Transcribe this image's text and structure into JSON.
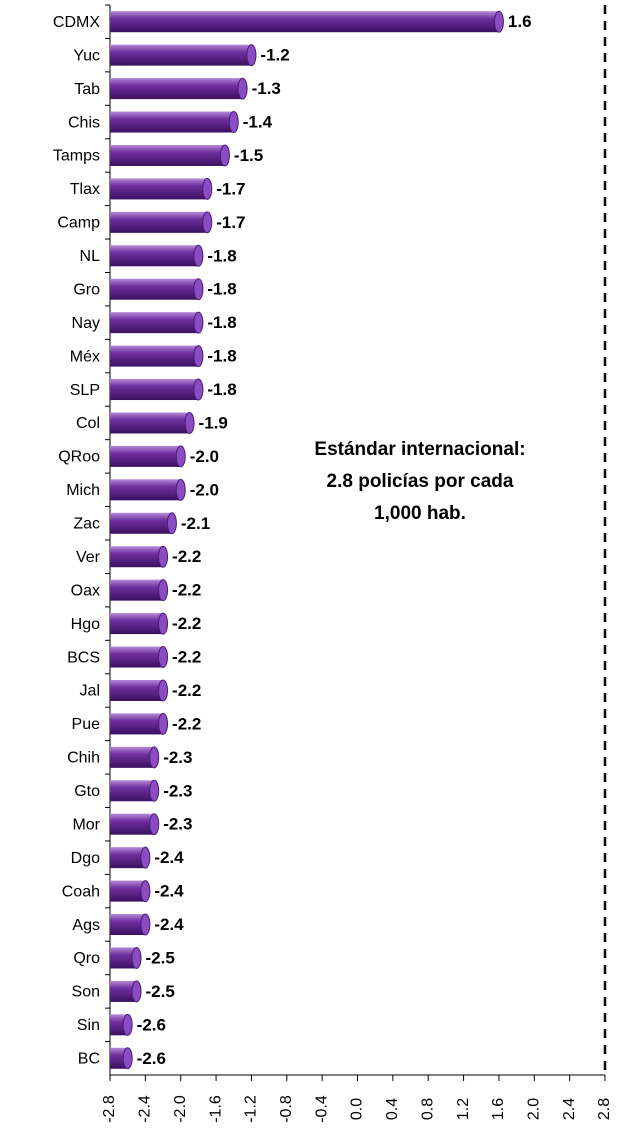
{
  "chart_data": {
    "type": "bar",
    "orientation": "horizontal",
    "color": "#7030a0",
    "categories": [
      "CDMX",
      "Yuc",
      "Tab",
      "Chis",
      "Tamps",
      "Tlax",
      "Camp",
      "NL",
      "Gro",
      "Nay",
      "Méx",
      "SLP",
      "Col",
      "QRoo",
      "Mich",
      "Zac",
      "Ver",
      "Oax",
      "Hgo",
      "BCS",
      "Jal",
      "Pue",
      "Chih",
      "Gto",
      "Mor",
      "Dgo",
      "Coah",
      "Ags",
      "Qro",
      "Son",
      "Sin",
      "BC"
    ],
    "values": [
      1.6,
      -1.2,
      -1.3,
      -1.4,
      -1.5,
      -1.7,
      -1.7,
      -1.8,
      -1.8,
      -1.8,
      -1.8,
      -1.8,
      -1.9,
      -2.0,
      -2.0,
      -2.1,
      -2.2,
      -2.2,
      -2.2,
      -2.2,
      -2.2,
      -2.2,
      -2.3,
      -2.3,
      -2.3,
      -2.4,
      -2.4,
      -2.4,
      -2.5,
      -2.5,
      -2.6,
      -2.6
    ],
    "value_labels": [
      "1.6",
      "-1.2",
      "-1.3",
      "-1.4",
      "-1.5",
      "-1.7",
      "-1.7",
      "-1.8",
      "-1.8",
      "-1.8",
      "-1.8",
      "-1.8",
      "-1.9",
      "-2.0",
      "-2.0",
      "-2.1",
      "-2.2",
      "-2.2",
      "-2.2",
      "-2.2",
      "-2.2",
      "-2.2",
      "-2.3",
      "-2.3",
      "-2.3",
      "-2.4",
      "-2.4",
      "-2.4",
      "-2.5",
      "-2.5",
      "-2.6",
      "-2.6"
    ],
    "xlim": [
      -2.8,
      2.8
    ],
    "xticks": [
      -2.8,
      -2.4,
      {
        "value": -2.0,
        "label": "-2.0"
      },
      -1.6,
      -1.2,
      -0.8,
      -0.4,
      {
        "value": 0.0,
        "label": "0.0"
      },
      0.4,
      0.8,
      1.2,
      1.6,
      {
        "value": 2.0,
        "label": "2.0"
      },
      2.4,
      2.8
    ],
    "annotation": [
      "Estándar internacional:",
      "2.8 policías por cada",
      "1,000 hab."
    ]
  }
}
